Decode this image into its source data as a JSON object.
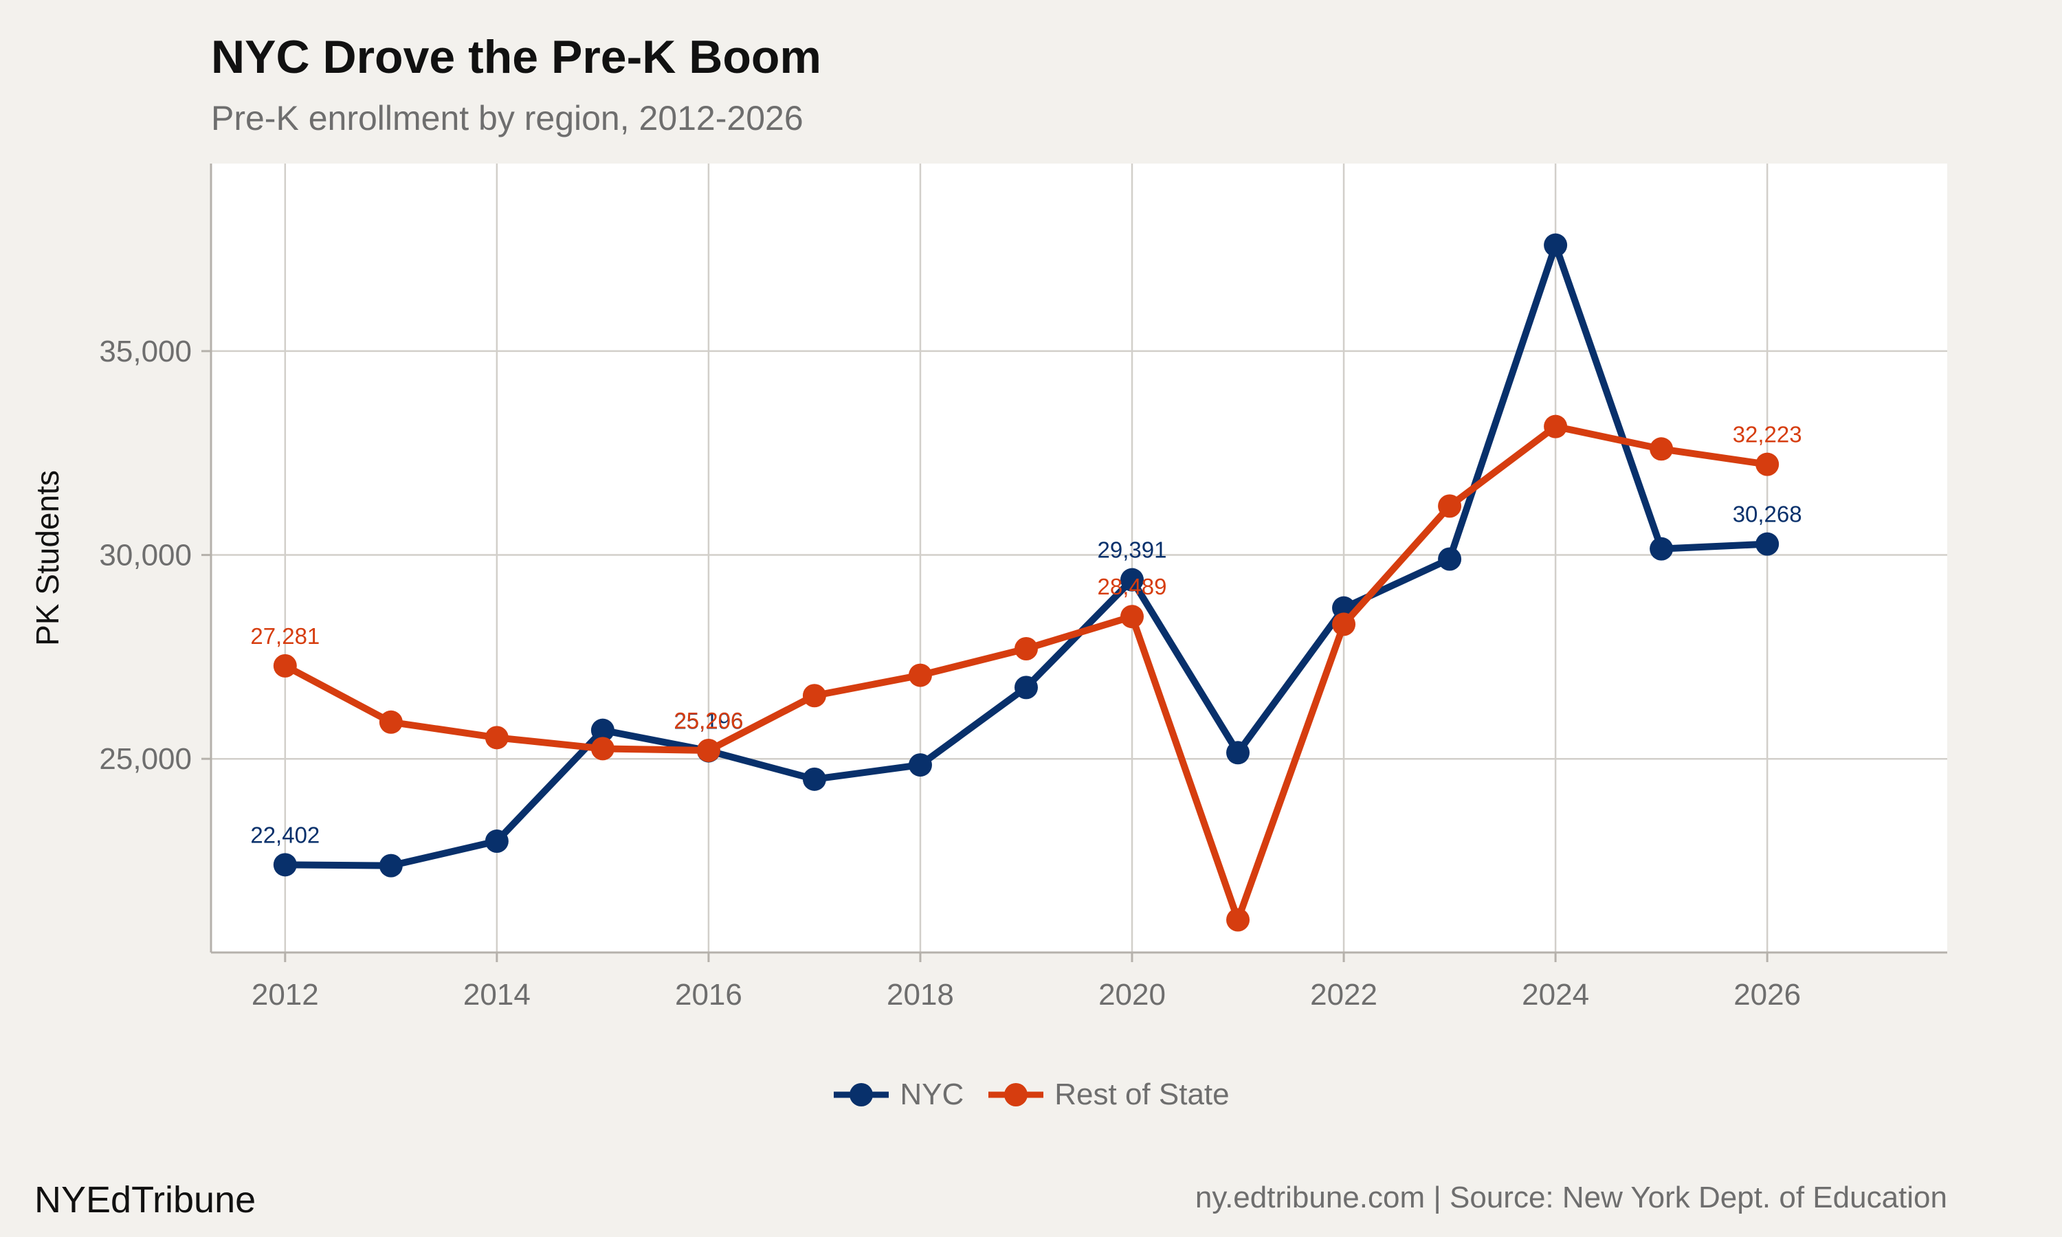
{
  "title": "NYC Drove the Pre-K Boom",
  "subtitle": "Pre-K enrollment by region, 2012-2026",
  "brand": "NYEdTribune",
  "source": "ny.edtribune.com | Source: New York Dept. of Education",
  "chart_data": {
    "type": "line",
    "ylabel": "PK Students",
    "xlabel": "",
    "xlim": [
      2011.3,
      2027.7
    ],
    "ylim": [
      20250,
      39600
    ],
    "x_ticks": [
      2012,
      2014,
      2016,
      2018,
      2020,
      2022,
      2024,
      2026
    ],
    "y_ticks": [
      25000,
      30000,
      35000
    ],
    "grid": true,
    "legend_position": "bottom",
    "x": [
      2012,
      2013,
      2014,
      2015,
      2016,
      2017,
      2018,
      2019,
      2020,
      2021,
      2022,
      2023,
      2024,
      2025,
      2026
    ],
    "series": [
      {
        "name": "NYC",
        "color": "#08306b",
        "values": [
          22402,
          22380,
          22980,
          25700,
          25196,
          24500,
          24850,
          26750,
          29391,
          25150,
          28700,
          29900,
          37600,
          30150,
          30268
        ],
        "labeled_years": [
          2012,
          2016,
          2020,
          2026
        ]
      },
      {
        "name": "Rest of State",
        "color": "#d63d0f",
        "values": [
          27281,
          25900,
          25520,
          25250,
          25206,
          26550,
          27050,
          27700,
          28489,
          21050,
          28300,
          31200,
          33150,
          32600,
          32223
        ],
        "labeled_years": [
          2012,
          2016,
          2020,
          2026
        ]
      }
    ]
  }
}
